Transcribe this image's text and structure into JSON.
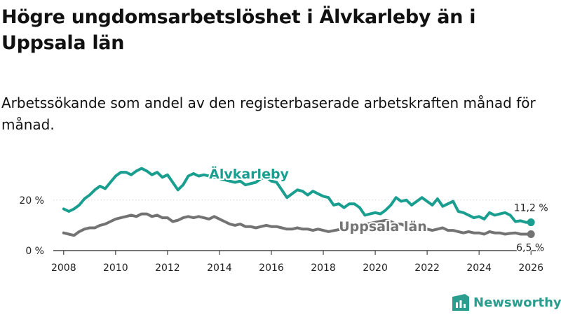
{
  "title": "Högre ungdomsarbetslöshet i Älvkarleby än i Uppsala län",
  "subtitle": "Arbetssökande som andel av den registerbaserade arbetskraften månad för månad.",
  "brand": "Newsworthy",
  "colors": {
    "alvkarleby": "#1a9e8f",
    "uppsala": "#737373",
    "axis": "#222222",
    "grid": "#d4d4d4",
    "brand": "#2a9d8f"
  },
  "chart_data": {
    "type": "line",
    "title": "Högre ungdomsarbetslöshet i Älvkarleby än i Uppsala län",
    "xlabel": "",
    "ylabel": "",
    "xlim": [
      2007.6,
      2026.4
    ],
    "ylim": [
      0,
      36
    ],
    "yticks": [
      {
        "value": 0,
        "label": "0 %"
      },
      {
        "value": 20,
        "label": "20 %"
      }
    ],
    "xticks": [
      2008,
      2010,
      2012,
      2014,
      2016,
      2018,
      2020,
      2022,
      2024,
      2026
    ],
    "series": [
      {
        "name": "Älvkarleby",
        "color": "#1a9e8f",
        "label_x": 2013.6,
        "label_y": 28.5,
        "end_label": "11,2 %",
        "points": [
          [
            2008.0,
            16.5
          ],
          [
            2008.2,
            15.5
          ],
          [
            2008.4,
            16.5
          ],
          [
            2008.6,
            18.0
          ],
          [
            2008.8,
            20.5
          ],
          [
            2009.0,
            22.0
          ],
          [
            2009.2,
            24.0
          ],
          [
            2009.4,
            25.5
          ],
          [
            2009.6,
            24.5
          ],
          [
            2009.8,
            27.0
          ],
          [
            2010.0,
            29.5
          ],
          [
            2010.2,
            31.0
          ],
          [
            2010.4,
            31.0
          ],
          [
            2010.6,
            30.0
          ],
          [
            2010.8,
            31.5
          ],
          [
            2011.0,
            32.5
          ],
          [
            2011.2,
            31.5
          ],
          [
            2011.4,
            30.0
          ],
          [
            2011.6,
            31.0
          ],
          [
            2011.8,
            29.0
          ],
          [
            2012.0,
            30.0
          ],
          [
            2012.2,
            27.0
          ],
          [
            2012.4,
            24.0
          ],
          [
            2012.6,
            26.0
          ],
          [
            2012.8,
            29.5
          ],
          [
            2013.0,
            30.5
          ],
          [
            2013.2,
            29.5
          ],
          [
            2013.4,
            30.0
          ],
          [
            2014.4,
            27.5
          ],
          [
            2014.6,
            27.0
          ],
          [
            2014.8,
            27.5
          ],
          [
            2015.0,
            26.0
          ],
          [
            2015.2,
            26.5
          ],
          [
            2015.4,
            27.0
          ],
          [
            2015.6,
            28.5
          ],
          [
            2015.8,
            29.0
          ],
          [
            2016.0,
            27.5
          ],
          [
            2016.2,
            27.0
          ],
          [
            2016.4,
            24.0
          ],
          [
            2016.6,
            21.0
          ],
          [
            2016.8,
            22.5
          ],
          [
            2017.0,
            24.0
          ],
          [
            2017.2,
            23.5
          ],
          [
            2017.4,
            22.0
          ],
          [
            2017.6,
            23.5
          ],
          [
            2017.8,
            22.5
          ],
          [
            2018.0,
            21.5
          ],
          [
            2018.2,
            21.0
          ],
          [
            2018.4,
            18.0
          ],
          [
            2018.6,
            18.5
          ],
          [
            2018.8,
            17.0
          ],
          [
            2019.0,
            18.5
          ],
          [
            2019.2,
            18.5
          ],
          [
            2019.4,
            17.0
          ],
          [
            2019.6,
            14.0
          ],
          [
            2019.8,
            14.5
          ],
          [
            2020.0,
            15.0
          ],
          [
            2020.2,
            14.5
          ],
          [
            2020.4,
            16.0
          ],
          [
            2020.6,
            18.0
          ],
          [
            2020.8,
            21.0
          ],
          [
            2021.0,
            19.5
          ],
          [
            2021.2,
            20.0
          ],
          [
            2021.4,
            18.0
          ],
          [
            2021.6,
            19.5
          ],
          [
            2021.8,
            21.0
          ],
          [
            2022.0,
            19.5
          ],
          [
            2022.2,
            18.0
          ],
          [
            2022.4,
            20.5
          ],
          [
            2022.6,
            17.5
          ],
          [
            2022.8,
            18.5
          ],
          [
            2023.0,
            19.5
          ],
          [
            2023.2,
            15.5
          ],
          [
            2023.4,
            15.0
          ],
          [
            2023.6,
            14.0
          ],
          [
            2023.8,
            13.0
          ],
          [
            2024.0,
            13.5
          ],
          [
            2024.2,
            12.5
          ],
          [
            2024.4,
            15.0
          ],
          [
            2024.6,
            14.0
          ],
          [
            2024.8,
            14.5
          ],
          [
            2025.0,
            15.0
          ],
          [
            2025.2,
            14.0
          ],
          [
            2025.4,
            11.5
          ],
          [
            2025.6,
            11.8
          ],
          [
            2025.8,
            11.2
          ],
          [
            2026.0,
            11.2
          ]
        ]
      },
      {
        "name": "Uppsala län",
        "color": "#737373",
        "label_x": 2018.6,
        "label_y": 7.8,
        "end_label": "6,5 %",
        "points": [
          [
            2008.0,
            7.0
          ],
          [
            2008.2,
            6.5
          ],
          [
            2008.4,
            6.0
          ],
          [
            2008.6,
            7.5
          ],
          [
            2008.8,
            8.5
          ],
          [
            2009.0,
            9.0
          ],
          [
            2009.2,
            9.0
          ],
          [
            2009.4,
            10.0
          ],
          [
            2009.6,
            10.5
          ],
          [
            2009.8,
            11.5
          ],
          [
            2010.0,
            12.5
          ],
          [
            2010.2,
            13.0
          ],
          [
            2010.4,
            13.5
          ],
          [
            2010.6,
            14.0
          ],
          [
            2010.8,
            13.5
          ],
          [
            2011.0,
            14.5
          ],
          [
            2011.2,
            14.5
          ],
          [
            2011.4,
            13.5
          ],
          [
            2011.6,
            14.0
          ],
          [
            2011.8,
            13.0
          ],
          [
            2012.0,
            13.0
          ],
          [
            2012.2,
            11.5
          ],
          [
            2012.4,
            12.0
          ],
          [
            2012.6,
            13.0
          ],
          [
            2012.8,
            13.5
          ],
          [
            2013.0,
            13.0
          ],
          [
            2013.2,
            13.5
          ],
          [
            2013.4,
            13.0
          ],
          [
            2013.6,
            12.5
          ],
          [
            2013.8,
            13.5
          ],
          [
            2014.0,
            12.5
          ],
          [
            2014.2,
            11.5
          ],
          [
            2014.4,
            10.5
          ],
          [
            2014.6,
            10.0
          ],
          [
            2014.8,
            10.5
          ],
          [
            2015.0,
            9.5
          ],
          [
            2015.2,
            9.5
          ],
          [
            2015.4,
            9.0
          ],
          [
            2015.6,
            9.5
          ],
          [
            2015.8,
            10.0
          ],
          [
            2016.0,
            9.5
          ],
          [
            2016.2,
            9.5
          ],
          [
            2016.4,
            9.0
          ],
          [
            2016.6,
            8.5
          ],
          [
            2016.8,
            8.5
          ],
          [
            2017.0,
            9.0
          ],
          [
            2017.2,
            8.5
          ],
          [
            2017.4,
            8.5
          ],
          [
            2017.6,
            8.0
          ],
          [
            2017.8,
            8.5
          ],
          [
            2018.0,
            8.0
          ],
          [
            2018.2,
            7.5
          ],
          [
            2020.4,
            12.0
          ],
          [
            2020.6,
            11.5
          ],
          [
            2020.8,
            10.5
          ],
          [
            2021.0,
            10.5
          ],
          [
            2021.2,
            9.5
          ],
          [
            2021.4,
            9.0
          ],
          [
            2021.6,
            8.5
          ],
          [
            2021.8,
            9.0
          ],
          [
            2022.0,
            8.5
          ],
          [
            2022.2,
            8.0
          ],
          [
            2022.4,
            8.5
          ],
          [
            2022.6,
            9.0
          ],
          [
            2022.8,
            8.0
          ],
          [
            2023.0,
            8.0
          ],
          [
            2023.2,
            7.5
          ],
          [
            2023.4,
            7.0
          ],
          [
            2023.6,
            7.5
          ],
          [
            2023.8,
            7.0
          ],
          [
            2024.0,
            7.0
          ],
          [
            2024.2,
            6.5
          ],
          [
            2024.4,
            7.5
          ],
          [
            2024.6,
            7.0
          ],
          [
            2024.8,
            7.0
          ],
          [
            2025.0,
            6.5
          ],
          [
            2025.2,
            6.8
          ],
          [
            2025.4,
            7.0
          ],
          [
            2025.6,
            6.5
          ],
          [
            2025.8,
            6.5
          ],
          [
            2026.0,
            6.5
          ]
        ]
      }
    ]
  }
}
